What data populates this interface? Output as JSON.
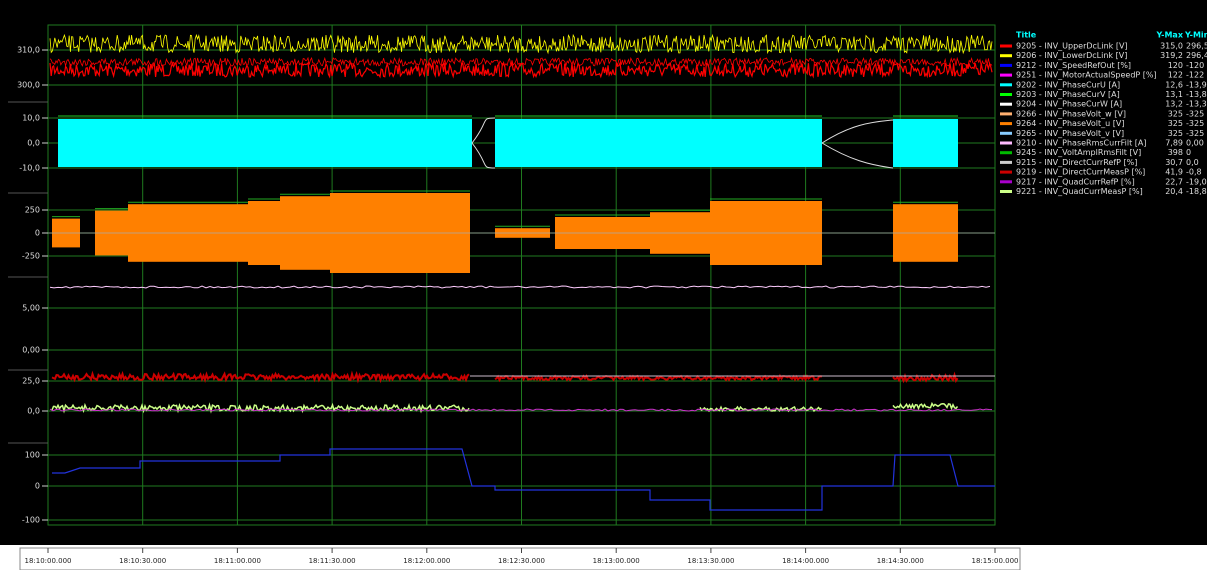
{
  "panels": [
    {
      "yticks": [
        "310,0",
        "300,0"
      ]
    },
    {
      "yticks": [
        "10,0",
        "0,0",
        "-10,0"
      ]
    },
    {
      "yticks": [
        "250",
        "0",
        "-250"
      ]
    },
    {
      "yticks": [
        "5,00",
        "0,00"
      ]
    },
    {
      "yticks": [
        "25,0",
        "0,0"
      ]
    },
    {
      "yticks": [
        "100",
        "0",
        "-100"
      ]
    }
  ],
  "time_axis": [
    "18:10:00.000",
    "18:10:30.000",
    "18:11:00.000",
    "18:11:30.000",
    "18:12:00.000",
    "18:12:30.000",
    "18:13:00.000",
    "18:13:30.000",
    "18:14:00.000",
    "18:14:30.000",
    "18:15:00.000"
  ],
  "legend": {
    "header": [
      "Title",
      "Y-Max",
      "Y-Min"
    ],
    "rows": [
      [
        "9205 - INV_UpperDcLink [V]",
        "315,0",
        "296,5"
      ],
      [
        "9206 - INV_LowerDcLink [V]",
        "319,2",
        "296,4"
      ],
      [
        "9212 - INV_SpeedRefOut [%]",
        "120",
        "-120"
      ],
      [
        "9251 - INV_MotorActualSpeedP [%]",
        "122",
        "-122"
      ],
      [
        "9202 - INV_PhaseCurU [A]",
        "12,6",
        "-13,9"
      ],
      [
        "9203 - INV_PhaseCurV [A]",
        "13,1",
        "-13,8"
      ],
      [
        "9204 - INV_PhaseCurW [A]",
        "13,2",
        "-13,3"
      ],
      [
        "9266 - INV_PhaseVolt_w [V]",
        "325",
        "-325"
      ],
      [
        "9264 - INV_PhaseVolt_u [V]",
        "325",
        "-325"
      ],
      [
        "9265 - INV_PhaseVolt_v [V]",
        "325",
        "-325"
      ],
      [
        "9210 - INV_PhaseRmsCurrFilt [A]",
        "7,89",
        "0,00"
      ],
      [
        "9245 - INV_VoltAmplRmsFilt [V]",
        "398",
        "0"
      ],
      [
        "9215 - INV_DirectCurrRefP [%]",
        "30,7",
        "0,0"
      ],
      [
        "9219 - INV_DirectCurrMeasP [%]",
        "41,9",
        "-0,8"
      ],
      [
        "9217 - INV_QuadCurrRefP [%]",
        "22,7",
        "-19,0"
      ],
      [
        "9221 - INV_QuadCurrMeasP [%]",
        "20,4",
        "-18,8"
      ]
    ]
  }
}
